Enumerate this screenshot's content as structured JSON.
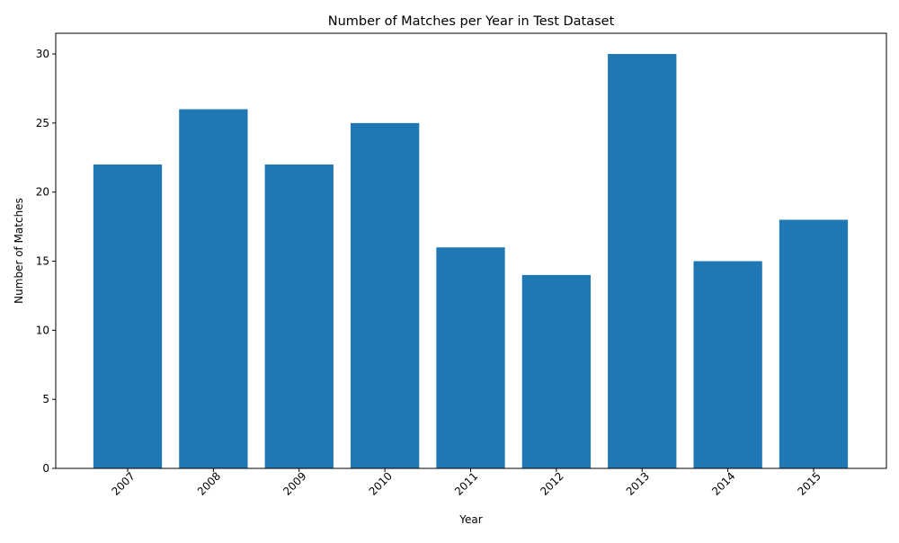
{
  "chart_data": {
    "type": "bar",
    "title": "Number of Matches per Year in Test Dataset",
    "xlabel": "Year",
    "ylabel": "Number of Matches",
    "categories": [
      "2007",
      "2008",
      "2009",
      "2010",
      "2011",
      "2012",
      "2013",
      "2014",
      "2015"
    ],
    "values": [
      22,
      26,
      22,
      25,
      16,
      14,
      30,
      15,
      18
    ],
    "ylim": [
      0,
      31.5
    ],
    "yticks": [
      "0",
      "5",
      "10",
      "15",
      "20",
      "25",
      "30"
    ],
    "x_tick_rotation_degrees": 45,
    "grid": false,
    "legend": false,
    "bar_color": "#1f77b4"
  }
}
